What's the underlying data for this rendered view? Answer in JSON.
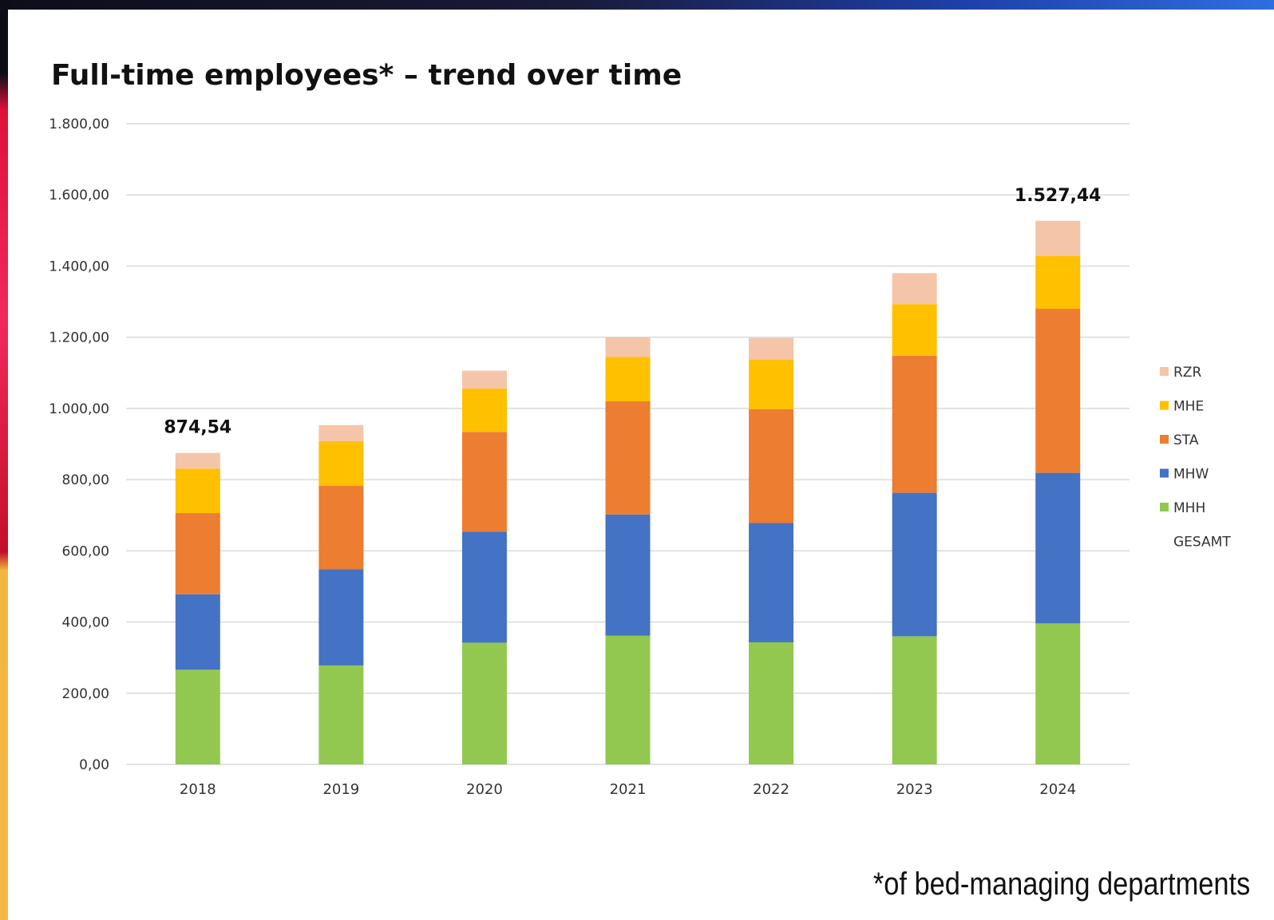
{
  "title": "Full-time employees* – trend over time",
  "footnote": "*of bed-managing departments",
  "chart_data": {
    "type": "bar",
    "stacked": true,
    "categories": [
      "2018",
      "2019",
      "2020",
      "2021",
      "2022",
      "2023",
      "2024"
    ],
    "ylim": [
      0,
      1800
    ],
    "y_ticks": [
      "0,00",
      "200,00",
      "400,00",
      "600,00",
      "800,00",
      "1.000,00",
      "1.200,00",
      "1.400,00",
      "1.600,00",
      "1.800,00"
    ],
    "grid": true,
    "legend_position": "right",
    "series": [
      {
        "name": "MHH",
        "color": "#92C84F",
        "values": [
          266,
          278,
          342,
          362,
          343,
          360,
          396
        ]
      },
      {
        "name": "MHW",
        "color": "#4472C4",
        "values": [
          212,
          270,
          312,
          340,
          335,
          403,
          423
        ]
      },
      {
        "name": "STA",
        "color": "#ED7D31",
        "values": [
          228,
          235,
          280,
          318,
          320,
          385,
          461
        ]
      },
      {
        "name": "MHE",
        "color": "#FFC000",
        "values": [
          125,
          125,
          122,
          125,
          140,
          145,
          148
        ]
      },
      {
        "name": "RZR",
        "color": "#F4C5A8",
        "values": [
          44,
          45,
          50,
          55,
          60,
          87,
          99
        ]
      }
    ],
    "legend_extra": "GESAMT",
    "total_labels": [
      {
        "category": "2018",
        "label": "874,54",
        "value": 874.54
      },
      {
        "category": "2024",
        "label": "1.527,44",
        "value": 1527.44
      }
    ]
  }
}
